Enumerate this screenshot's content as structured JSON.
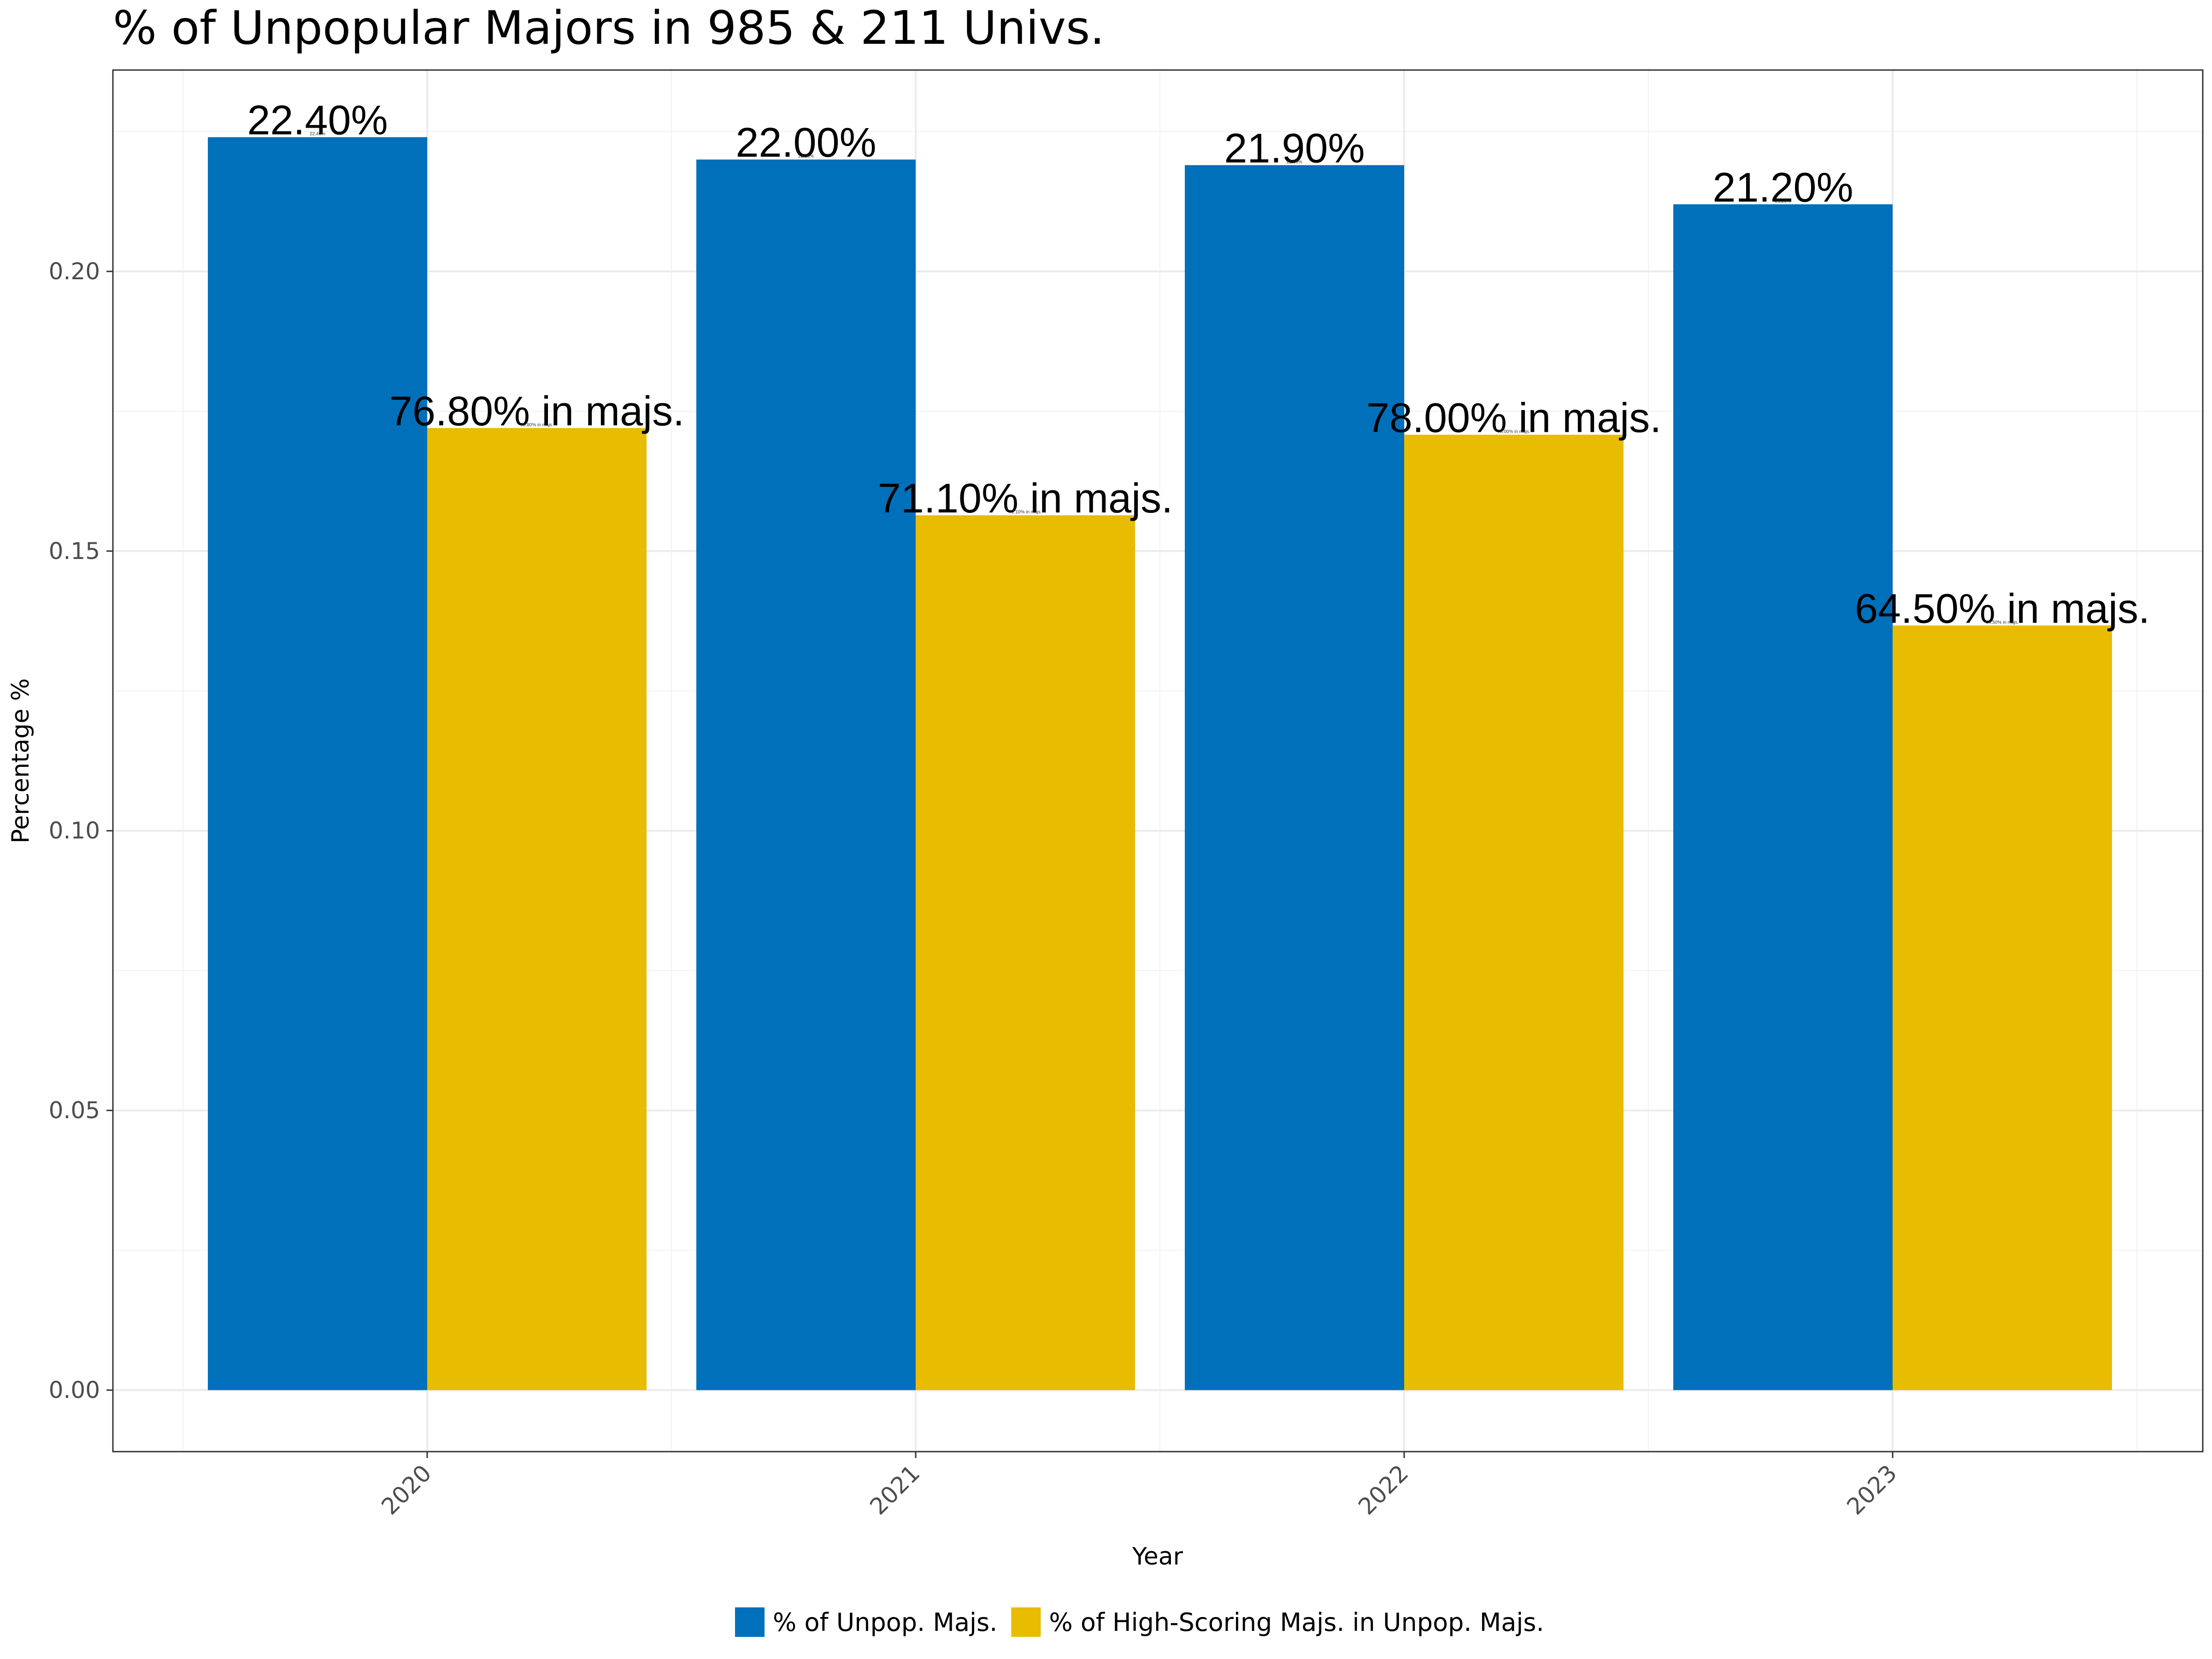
{
  "chart_data": {
    "type": "bar",
    "title": "% of Unpopular Majors in 985 & 211 Univs.",
    "xlabel": "Year",
    "ylabel": "Percentage %",
    "categories": [
      "2020",
      "2021",
      "2022",
      "2023"
    ],
    "ylim": [
      -0.011,
      0.236
    ],
    "yticks": [
      "0.00",
      "0.05",
      "0.10",
      "0.15",
      "0.20"
    ],
    "grid": true,
    "legend_position": "bottom",
    "series": [
      {
        "name": "% of Unpop. Majs.",
        "color": "#0070BB",
        "values": [
          0.224,
          0.22,
          0.219,
          0.212
        ],
        "labels": [
          "22.40%",
          "22.00%",
          "21.90%",
          "21.20%"
        ]
      },
      {
        "name": "% of High-Scoring Majs. in Unpop. Majs.",
        "color": "#E8BC00",
        "values": [
          0.172,
          0.1564,
          0.1708,
          0.1367
        ],
        "labels": [
          "76.80% in majs.",
          "71.10% in majs.",
          "78.00% in majs.",
          "64.50% in majs."
        ]
      }
    ]
  }
}
